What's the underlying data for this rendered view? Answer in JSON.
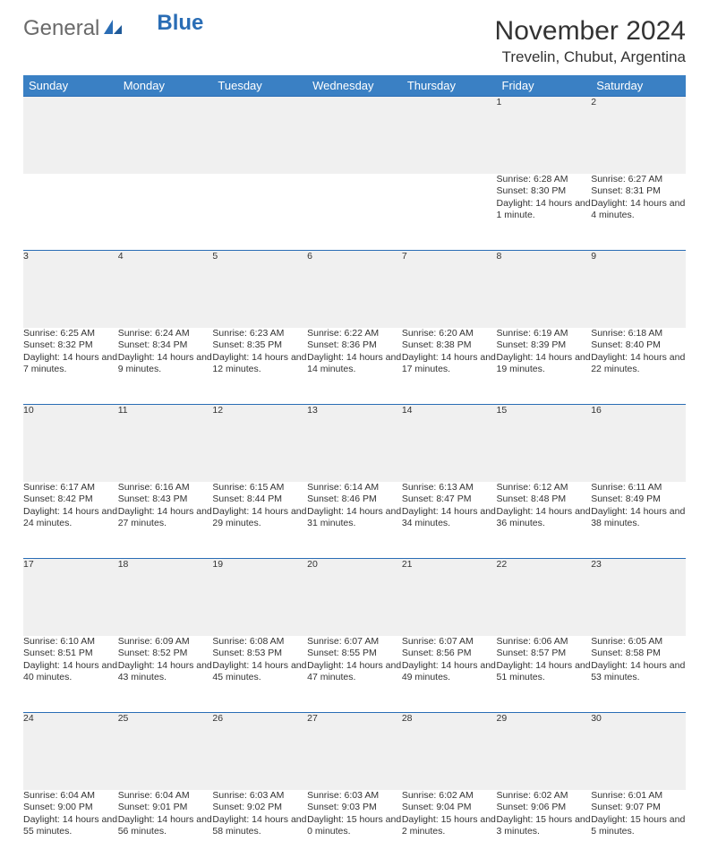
{
  "brand": {
    "text1": "General",
    "text2": "Blue"
  },
  "title": "November 2024",
  "location": "Trevelin, Chubut, Argentina",
  "colors": {
    "header_bg": "#3a80c4",
    "header_text": "#ffffff",
    "daynum_bg": "#f0f0f0",
    "row_divider": "#2a6db5",
    "text": "#333333",
    "logo_gray": "#6a6a6a",
    "logo_blue": "#2a6db5",
    "page_bg": "#ffffff"
  },
  "fonts": {
    "title_pt": 30,
    "location_pt": 17,
    "th_pt": 13,
    "cell_pt": 10.5,
    "daynum_pt": 12
  },
  "dayHeaders": [
    "Sunday",
    "Monday",
    "Tuesday",
    "Wednesday",
    "Thursday",
    "Friday",
    "Saturday"
  ],
  "weeks": [
    [
      null,
      null,
      null,
      null,
      null,
      {
        "n": "1",
        "sr": "Sunrise: 6:28 AM",
        "ss": "Sunset: 8:30 PM",
        "dl": "Daylight: 14 hours and 1 minute."
      },
      {
        "n": "2",
        "sr": "Sunrise: 6:27 AM",
        "ss": "Sunset: 8:31 PM",
        "dl": "Daylight: 14 hours and 4 minutes."
      }
    ],
    [
      {
        "n": "3",
        "sr": "Sunrise: 6:25 AM",
        "ss": "Sunset: 8:32 PM",
        "dl": "Daylight: 14 hours and 7 minutes."
      },
      {
        "n": "4",
        "sr": "Sunrise: 6:24 AM",
        "ss": "Sunset: 8:34 PM",
        "dl": "Daylight: 14 hours and 9 minutes."
      },
      {
        "n": "5",
        "sr": "Sunrise: 6:23 AM",
        "ss": "Sunset: 8:35 PM",
        "dl": "Daylight: 14 hours and 12 minutes."
      },
      {
        "n": "6",
        "sr": "Sunrise: 6:22 AM",
        "ss": "Sunset: 8:36 PM",
        "dl": "Daylight: 14 hours and 14 minutes."
      },
      {
        "n": "7",
        "sr": "Sunrise: 6:20 AM",
        "ss": "Sunset: 8:38 PM",
        "dl": "Daylight: 14 hours and 17 minutes."
      },
      {
        "n": "8",
        "sr": "Sunrise: 6:19 AM",
        "ss": "Sunset: 8:39 PM",
        "dl": "Daylight: 14 hours and 19 minutes."
      },
      {
        "n": "9",
        "sr": "Sunrise: 6:18 AM",
        "ss": "Sunset: 8:40 PM",
        "dl": "Daylight: 14 hours and 22 minutes."
      }
    ],
    [
      {
        "n": "10",
        "sr": "Sunrise: 6:17 AM",
        "ss": "Sunset: 8:42 PM",
        "dl": "Daylight: 14 hours and 24 minutes."
      },
      {
        "n": "11",
        "sr": "Sunrise: 6:16 AM",
        "ss": "Sunset: 8:43 PM",
        "dl": "Daylight: 14 hours and 27 minutes."
      },
      {
        "n": "12",
        "sr": "Sunrise: 6:15 AM",
        "ss": "Sunset: 8:44 PM",
        "dl": "Daylight: 14 hours and 29 minutes."
      },
      {
        "n": "13",
        "sr": "Sunrise: 6:14 AM",
        "ss": "Sunset: 8:46 PM",
        "dl": "Daylight: 14 hours and 31 minutes."
      },
      {
        "n": "14",
        "sr": "Sunrise: 6:13 AM",
        "ss": "Sunset: 8:47 PM",
        "dl": "Daylight: 14 hours and 34 minutes."
      },
      {
        "n": "15",
        "sr": "Sunrise: 6:12 AM",
        "ss": "Sunset: 8:48 PM",
        "dl": "Daylight: 14 hours and 36 minutes."
      },
      {
        "n": "16",
        "sr": "Sunrise: 6:11 AM",
        "ss": "Sunset: 8:49 PM",
        "dl": "Daylight: 14 hours and 38 minutes."
      }
    ],
    [
      {
        "n": "17",
        "sr": "Sunrise: 6:10 AM",
        "ss": "Sunset: 8:51 PM",
        "dl": "Daylight: 14 hours and 40 minutes."
      },
      {
        "n": "18",
        "sr": "Sunrise: 6:09 AM",
        "ss": "Sunset: 8:52 PM",
        "dl": "Daylight: 14 hours and 43 minutes."
      },
      {
        "n": "19",
        "sr": "Sunrise: 6:08 AM",
        "ss": "Sunset: 8:53 PM",
        "dl": "Daylight: 14 hours and 45 minutes."
      },
      {
        "n": "20",
        "sr": "Sunrise: 6:07 AM",
        "ss": "Sunset: 8:55 PM",
        "dl": "Daylight: 14 hours and 47 minutes."
      },
      {
        "n": "21",
        "sr": "Sunrise: 6:07 AM",
        "ss": "Sunset: 8:56 PM",
        "dl": "Daylight: 14 hours and 49 minutes."
      },
      {
        "n": "22",
        "sr": "Sunrise: 6:06 AM",
        "ss": "Sunset: 8:57 PM",
        "dl": "Daylight: 14 hours and 51 minutes."
      },
      {
        "n": "23",
        "sr": "Sunrise: 6:05 AM",
        "ss": "Sunset: 8:58 PM",
        "dl": "Daylight: 14 hours and 53 minutes."
      }
    ],
    [
      {
        "n": "24",
        "sr": "Sunrise: 6:04 AM",
        "ss": "Sunset: 9:00 PM",
        "dl": "Daylight: 14 hours and 55 minutes."
      },
      {
        "n": "25",
        "sr": "Sunrise: 6:04 AM",
        "ss": "Sunset: 9:01 PM",
        "dl": "Daylight: 14 hours and 56 minutes."
      },
      {
        "n": "26",
        "sr": "Sunrise: 6:03 AM",
        "ss": "Sunset: 9:02 PM",
        "dl": "Daylight: 14 hours and 58 minutes."
      },
      {
        "n": "27",
        "sr": "Sunrise: 6:03 AM",
        "ss": "Sunset: 9:03 PM",
        "dl": "Daylight: 15 hours and 0 minutes."
      },
      {
        "n": "28",
        "sr": "Sunrise: 6:02 AM",
        "ss": "Sunset: 9:04 PM",
        "dl": "Daylight: 15 hours and 2 minutes."
      },
      {
        "n": "29",
        "sr": "Sunrise: 6:02 AM",
        "ss": "Sunset: 9:06 PM",
        "dl": "Daylight: 15 hours and 3 minutes."
      },
      {
        "n": "30",
        "sr": "Sunrise: 6:01 AM",
        "ss": "Sunset: 9:07 PM",
        "dl": "Daylight: 15 hours and 5 minutes."
      }
    ]
  ]
}
